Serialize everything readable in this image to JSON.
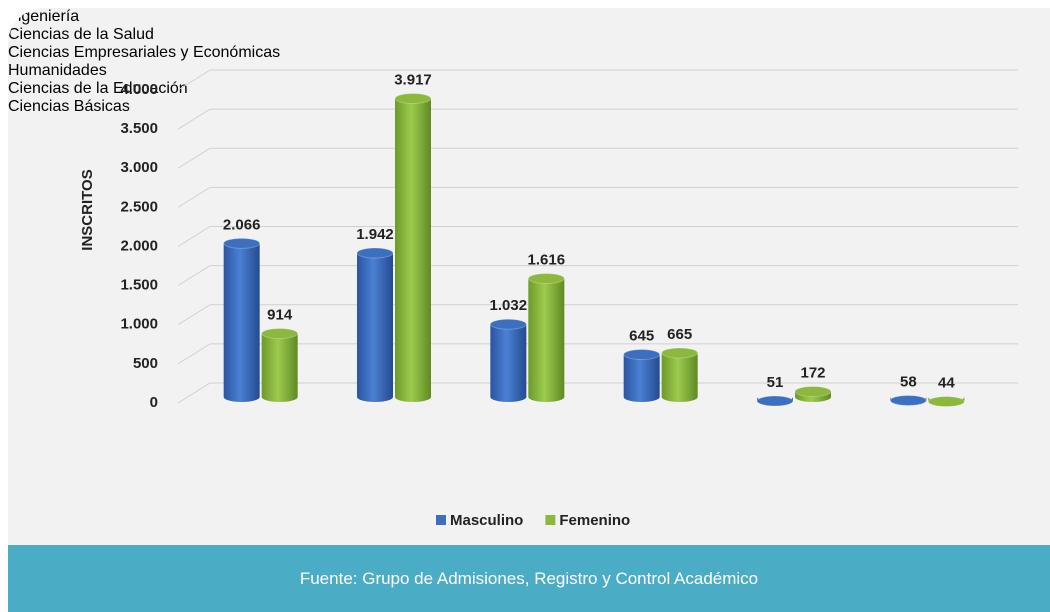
{
  "chart_data": {
    "type": "bar",
    "y_axis_label": "INSCRITOS",
    "source": "Fuente: Grupo de Admisiones, Registro y Control Académico",
    "categories": [
      "Ingeniería",
      "Ciencias de la Salud",
      "Ciencias Empresariales y Económicas",
      "Humanidades",
      "Ciencias de la Educación",
      "Ciencias Básicas"
    ],
    "series": [
      {
        "name": "Masculino",
        "color": "#3c6fc0",
        "values": [
          2066,
          1942,
          1032,
          645,
          51,
          58
        ],
        "value_labels": [
          "2.066",
          "1.942",
          "1.032",
          "645",
          "51",
          "58"
        ]
      },
      {
        "name": "Femenino",
        "color": "#8cb83e",
        "values": [
          914,
          3917,
          1616,
          665,
          172,
          44
        ],
        "value_labels": [
          "914",
          "3.917",
          "1.616",
          "665",
          "172",
          "44"
        ]
      }
    ],
    "ylim": [
      0,
      4000
    ],
    "yticks": [
      0,
      500,
      {
        "value": 1000,
        "label": "1.000"
      },
      {
        "value": 1500,
        "label": "1.500"
      },
      {
        "value": 2000,
        "label": "2.000"
      },
      {
        "value": 2500,
        "label": "2.500"
      },
      {
        "value": 3000,
        "label": "3.000"
      },
      {
        "value": 3500,
        "label": "3.500"
      },
      {
        "value": 4000,
        "label": "4.000"
      }
    ],
    "grid": true,
    "legend": "bottom"
  }
}
